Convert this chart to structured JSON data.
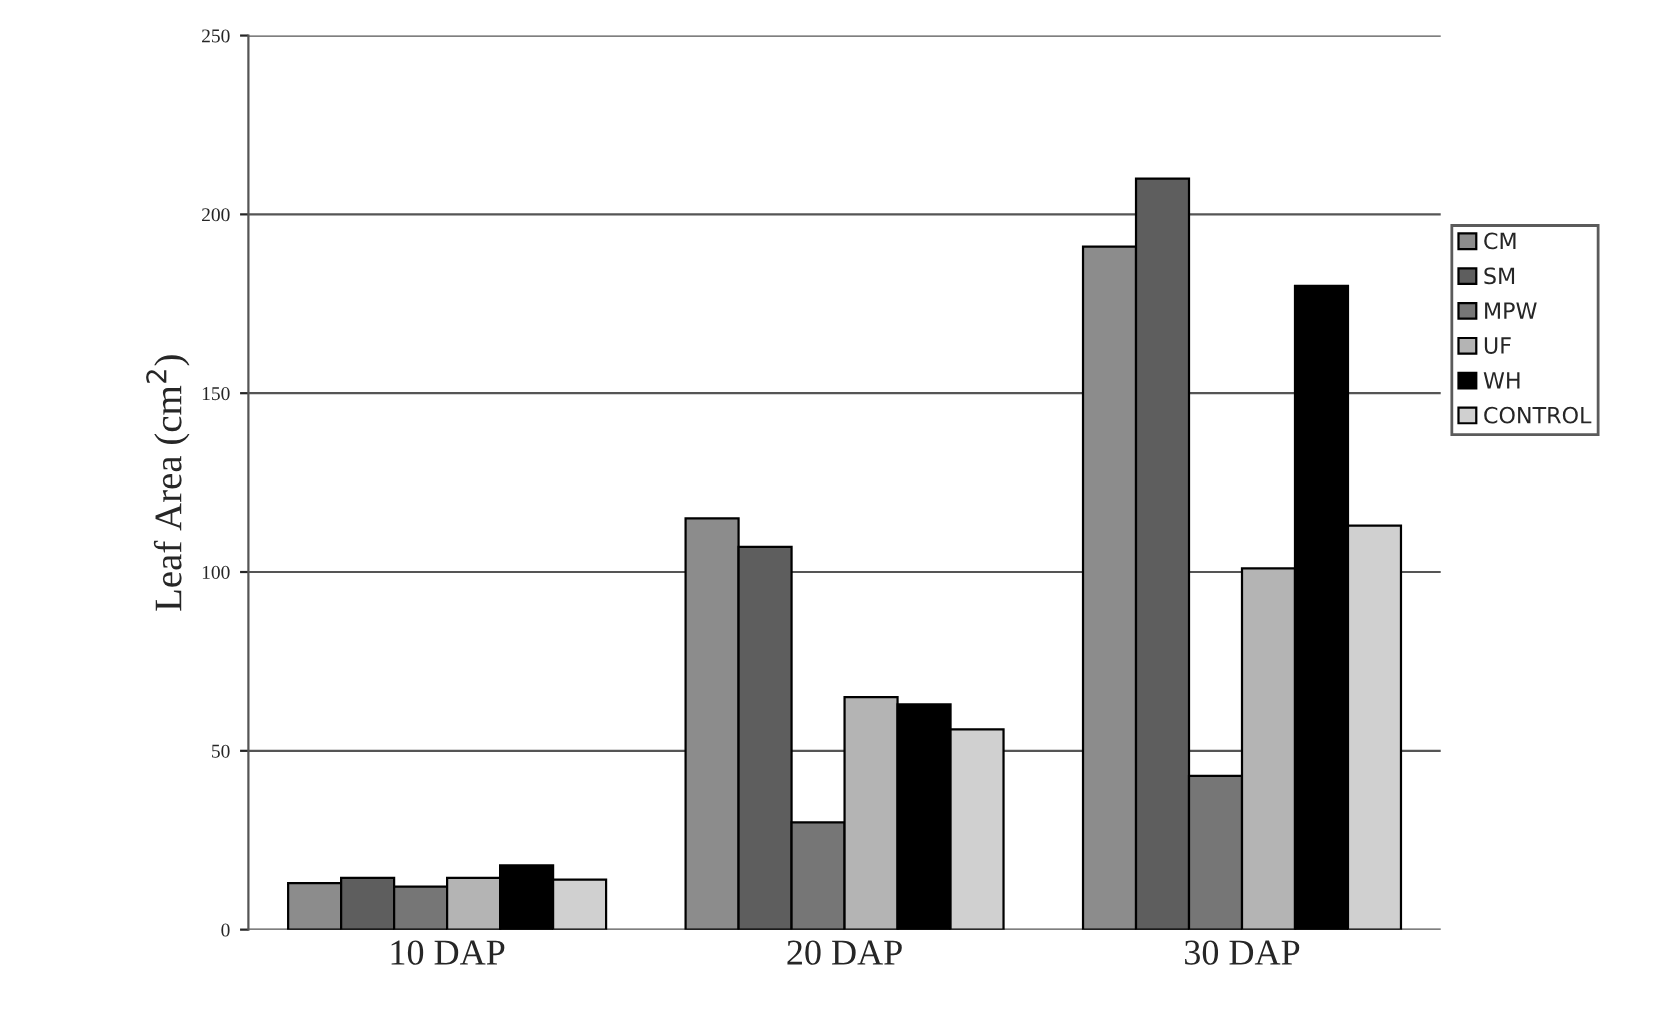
{
  "chart_data": {
    "type": "bar",
    "ylabel": "Leaf Area (cm$^{2}$)",
    "categories": [
      "10 DAP",
      "20 DAP",
      "30 DAP"
    ],
    "series": [
      {
        "name": "CM",
        "color": "#8c8c8c",
        "values": [
          13,
          115,
          191
        ]
      },
      {
        "name": "SM",
        "color": "#5e5e5e",
        "values": [
          14.5,
          107,
          210
        ]
      },
      {
        "name": "MPW",
        "color": "#767676",
        "values": [
          12,
          30,
          43
        ]
      },
      {
        "name": "UF",
        "color": "#b4b4b4",
        "values": [
          14.5,
          65,
          101
        ]
      },
      {
        "name": "WH",
        "color": "#000000",
        "values": [
          18,
          63,
          180
        ]
      },
      {
        "name": "CONTROL",
        "color": "#d0d0d0",
        "values": [
          14,
          56,
          113
        ]
      }
    ],
    "ylim": [
      0,
      250
    ],
    "yticks": [
      0,
      50,
      100,
      150,
      200,
      250
    ],
    "grid": "y",
    "legend": "right"
  }
}
